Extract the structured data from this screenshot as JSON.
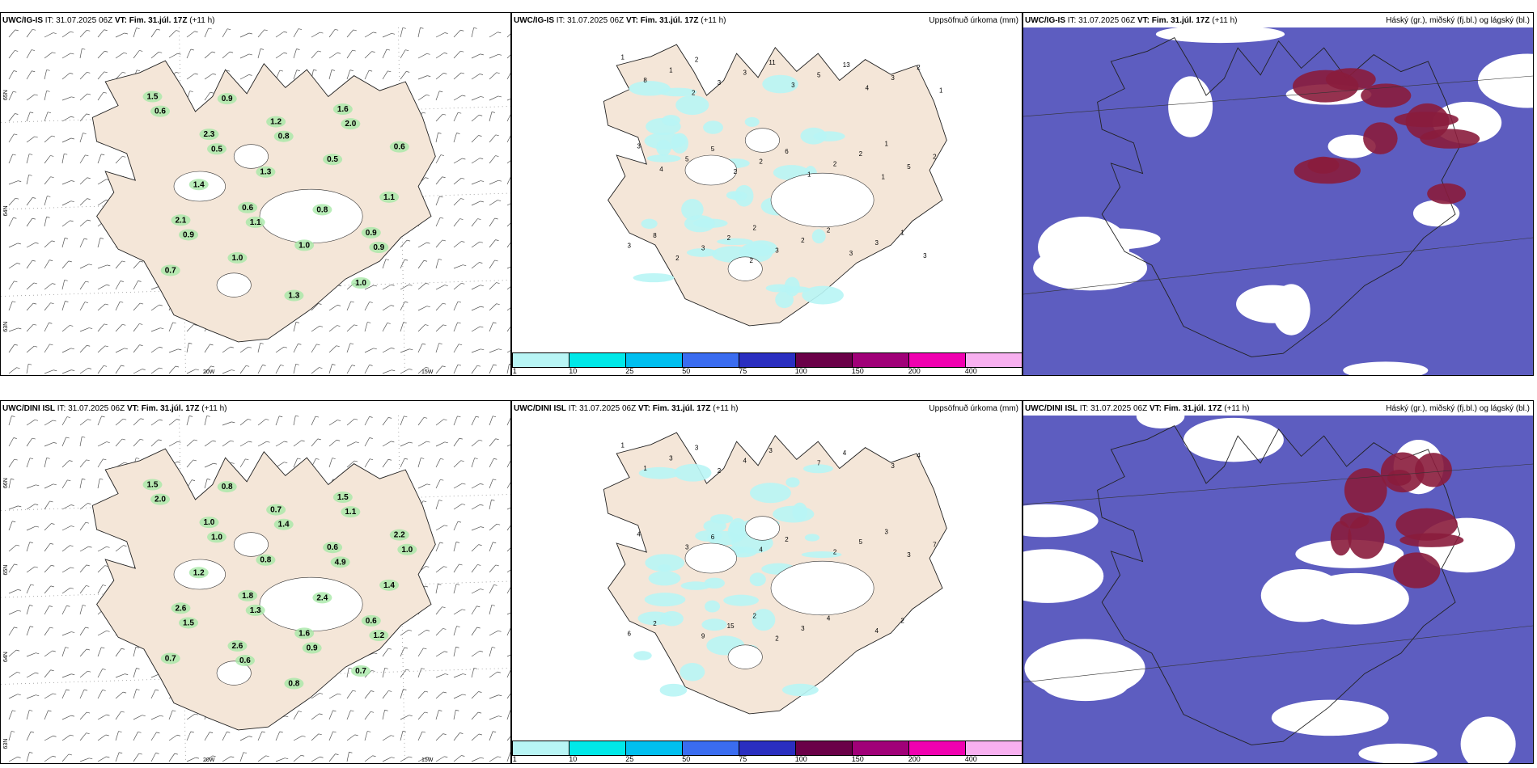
{
  "rows": [
    {
      "model": "UWC/IG-IS",
      "it_label": "IT:",
      "it_value": "31.07.2025 06Z",
      "vt_label": "VT:",
      "vt_value": "Fim. 31.júl. 17Z",
      "lead": "(+11 h)",
      "wind_values": [
        "1.5",
        "0.6",
        "1.6",
        "2.1",
        "1.2",
        "0.9",
        "2.3",
        "1.0",
        "0.6",
        "1.0",
        "0.5",
        "0.7",
        "1.3",
        "1.0",
        "1.4",
        "1.3",
        "1.1",
        "0.9",
        "0.8",
        "0.6",
        "1.1",
        "2.0",
        "0.9",
        "0.8",
        "0.9",
        "0.5"
      ],
      "precip_values": [
        "1",
        "2",
        "1",
        "2",
        "2",
        "3",
        "11",
        "1",
        "5",
        "13",
        "8",
        "6",
        "2",
        "2",
        "2",
        "1",
        "2",
        "2",
        "3",
        "3",
        "5",
        "5",
        "3",
        "2",
        "3",
        "3",
        "2",
        "8",
        "3",
        "5",
        "3",
        "3",
        "4",
        "3",
        "3",
        "2",
        "4",
        "2",
        "1",
        "1",
        "2",
        "1",
        "2"
      ],
      "lat_labels": [
        "65N",
        "64N",
        "63N"
      ],
      "lon_labels": [
        "20W",
        "15W"
      ]
    },
    {
      "model": "UWC/DINI ISL",
      "it_label": "IT:",
      "it_value": "31.07.2025 06Z",
      "vt_label": "VT:",
      "vt_value": "Fim. 31.júl. 17Z",
      "lead": "(+11 h)",
      "wind_values": [
        "1.5",
        "1.8",
        "1.5",
        "2.6",
        "0.7",
        "0.6",
        "1.0",
        "1.6",
        "2.2",
        "2.6",
        "0.6",
        "0.7",
        "0.8",
        "0.7",
        "1.2",
        "0.8",
        "1.4",
        "0.8",
        "2.4",
        "2.0",
        "1.3",
        "1.1",
        "1.5",
        "1.4",
        "1.2",
        "1.0",
        "0.9",
        "1.0",
        "0.6",
        "4.9"
      ],
      "precip_values": [
        "1",
        "2",
        "3",
        "3",
        "4",
        "4",
        "3",
        "2",
        "6",
        "4",
        "2",
        "2",
        "4",
        "15",
        "5",
        "3",
        "3",
        "7",
        "4",
        "4",
        "3",
        "7",
        "6",
        "4",
        "3",
        "9",
        "2",
        "1",
        "2",
        "3",
        "2"
      ],
      "lat_labels": [
        "66N",
        "65N",
        "64N",
        "63N"
      ],
      "lon_labels": [
        "20W",
        "15W"
      ]
    }
  ],
  "precip_title": "Uppsöfnuð úrkoma (mm)",
  "cloud_title": "Háský (gr.), miðský (fj.bl.) og lágský (bl.)",
  "colorbar": {
    "ticks": [
      "1",
      "10",
      "25",
      "50",
      "75",
      "100",
      "150",
      "200",
      "400"
    ],
    "colors": [
      "#b8f5f5",
      "#00e8e8",
      "#00bfef",
      "#3a6cf0",
      "#2a2ec0",
      "#6a0048",
      "#a00078",
      "#f000b0",
      "#f8b0f0"
    ]
  },
  "colors": {
    "land": "#f4e6d8",
    "sea": "#ffffff",
    "precip": "#b8f5f5",
    "cloud_blue": "#5d5dc0",
    "cloud_red": "#8a1c3c"
  }
}
